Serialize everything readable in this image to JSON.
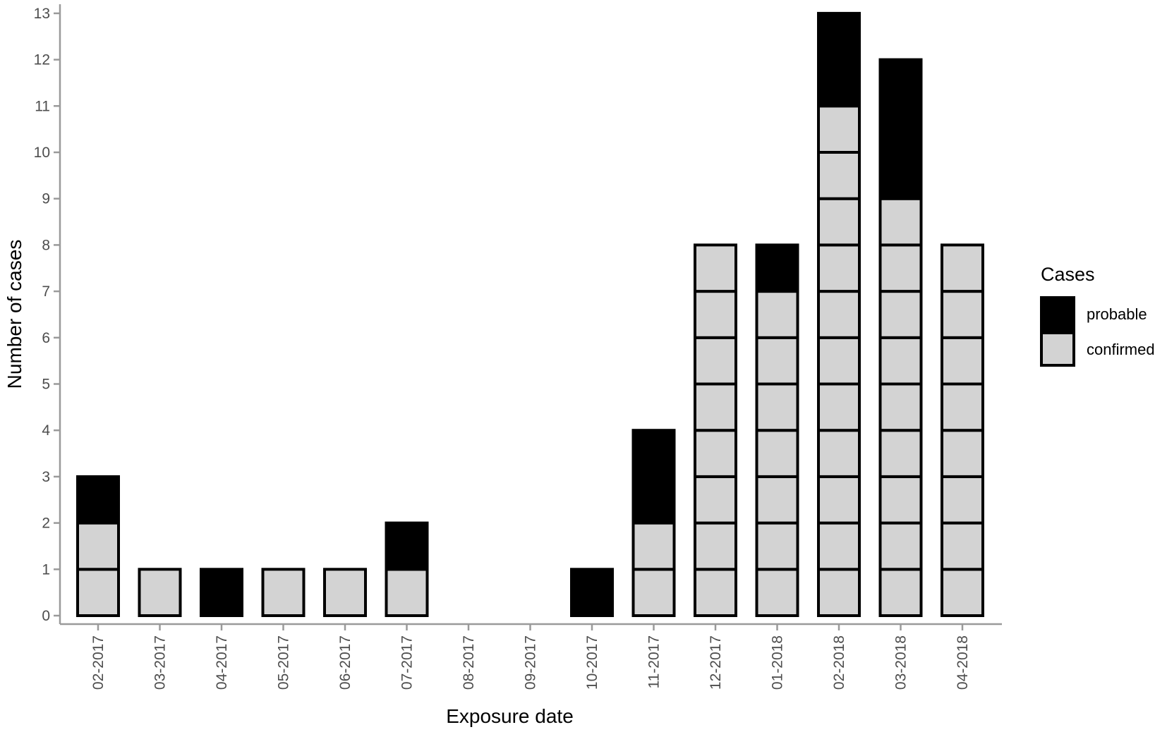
{
  "chart_data": {
    "type": "bar",
    "stacked": true,
    "unit_boxes": true,
    "title": "",
    "xlabel": "Exposure date",
    "ylabel": "Number of cases",
    "ylim": [
      0,
      13
    ],
    "yticks": [
      0,
      1,
      2,
      3,
      4,
      5,
      6,
      7,
      8,
      9,
      10,
      11,
      12,
      13
    ],
    "categories": [
      "02-2017",
      "03-2017",
      "04-2017",
      "05-2017",
      "06-2017",
      "07-2017",
      "08-2017",
      "09-2017",
      "10-2017",
      "11-2017",
      "12-2017",
      "01-2018",
      "02-2018",
      "03-2018",
      "04-2018"
    ],
    "series": [
      {
        "name": "confirmed",
        "color": "#d3d3d3",
        "values": [
          2,
          1,
          0,
          1,
          1,
          1,
          0,
          0,
          0,
          2,
          8,
          7,
          11,
          9,
          8
        ]
      },
      {
        "name": "probable",
        "color": "#000000",
        "values": [
          1,
          0,
          1,
          0,
          0,
          1,
          0,
          0,
          1,
          2,
          0,
          1,
          2,
          3,
          0
        ]
      }
    ],
    "legend": {
      "title": "Cases",
      "position": "right",
      "order": [
        "probable",
        "confirmed"
      ]
    },
    "grid": false,
    "colors": {
      "axis": "#9a9a9a",
      "tick_label": "#4d4d4d",
      "outline": "#000000"
    }
  }
}
